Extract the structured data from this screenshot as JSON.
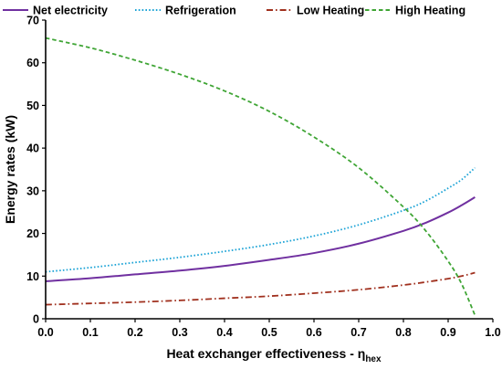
{
  "chart_data": {
    "type": "line",
    "xlabel": "Heat exchanger effectiveness - η",
    "xlabel_sub": "hex",
    "ylabel": "Energy rates (kW)",
    "xlim": [
      0,
      1.0
    ],
    "ylim": [
      0,
      70
    ],
    "x_ticks": [
      "0.0",
      "0.1",
      "0.2",
      "0.3",
      "0.4",
      "0.5",
      "0.6",
      "0.7",
      "0.8",
      "0.9",
      "1.0"
    ],
    "y_ticks": [
      "0",
      "10",
      "20",
      "30",
      "40",
      "50",
      "60",
      "70"
    ],
    "grid": false,
    "legend_position": "top",
    "series": [
      {
        "name": "Net electricity",
        "color": "#7030a0",
        "dash": "solid",
        "x": [
          0,
          0.1,
          0.2,
          0.3,
          0.4,
          0.5,
          0.6,
          0.7,
          0.8,
          0.85,
          0.9,
          0.93,
          0.96
        ],
        "y": [
          8.8,
          9.5,
          10.4,
          11.3,
          12.4,
          13.8,
          15.4,
          17.6,
          20.6,
          22.5,
          24.9,
          26.6,
          28.5
        ]
      },
      {
        "name": "Refrigeration",
        "color": "#1ba3d6",
        "dash": "dotted",
        "x": [
          0,
          0.1,
          0.2,
          0.3,
          0.4,
          0.5,
          0.6,
          0.7,
          0.8,
          0.85,
          0.9,
          0.93,
          0.96
        ],
        "y": [
          11.0,
          12.0,
          13.2,
          14.4,
          15.8,
          17.4,
          19.4,
          22.0,
          25.4,
          27.6,
          30.6,
          32.6,
          35.4
        ]
      },
      {
        "name": "Low Heating",
        "color": "#a0301e",
        "dash": "dashdot",
        "x": [
          0,
          0.1,
          0.2,
          0.3,
          0.4,
          0.5,
          0.6,
          0.7,
          0.8,
          0.85,
          0.9,
          0.93,
          0.96
        ],
        "y": [
          3.3,
          3.6,
          3.9,
          4.3,
          4.8,
          5.3,
          6.0,
          6.8,
          7.9,
          8.6,
          9.4,
          10.0,
          10.8
        ]
      },
      {
        "name": "High Heating",
        "color": "#3fa535",
        "dash": "dashed",
        "x": [
          0,
          0.1,
          0.2,
          0.3,
          0.4,
          0.5,
          0.6,
          0.7,
          0.8,
          0.85,
          0.9,
          0.93,
          0.96
        ],
        "y": [
          65.8,
          63.5,
          60.6,
          57.3,
          53.4,
          48.6,
          42.6,
          35.4,
          26.2,
          20.6,
          13.5,
          8.2,
          0.8
        ]
      }
    ]
  }
}
